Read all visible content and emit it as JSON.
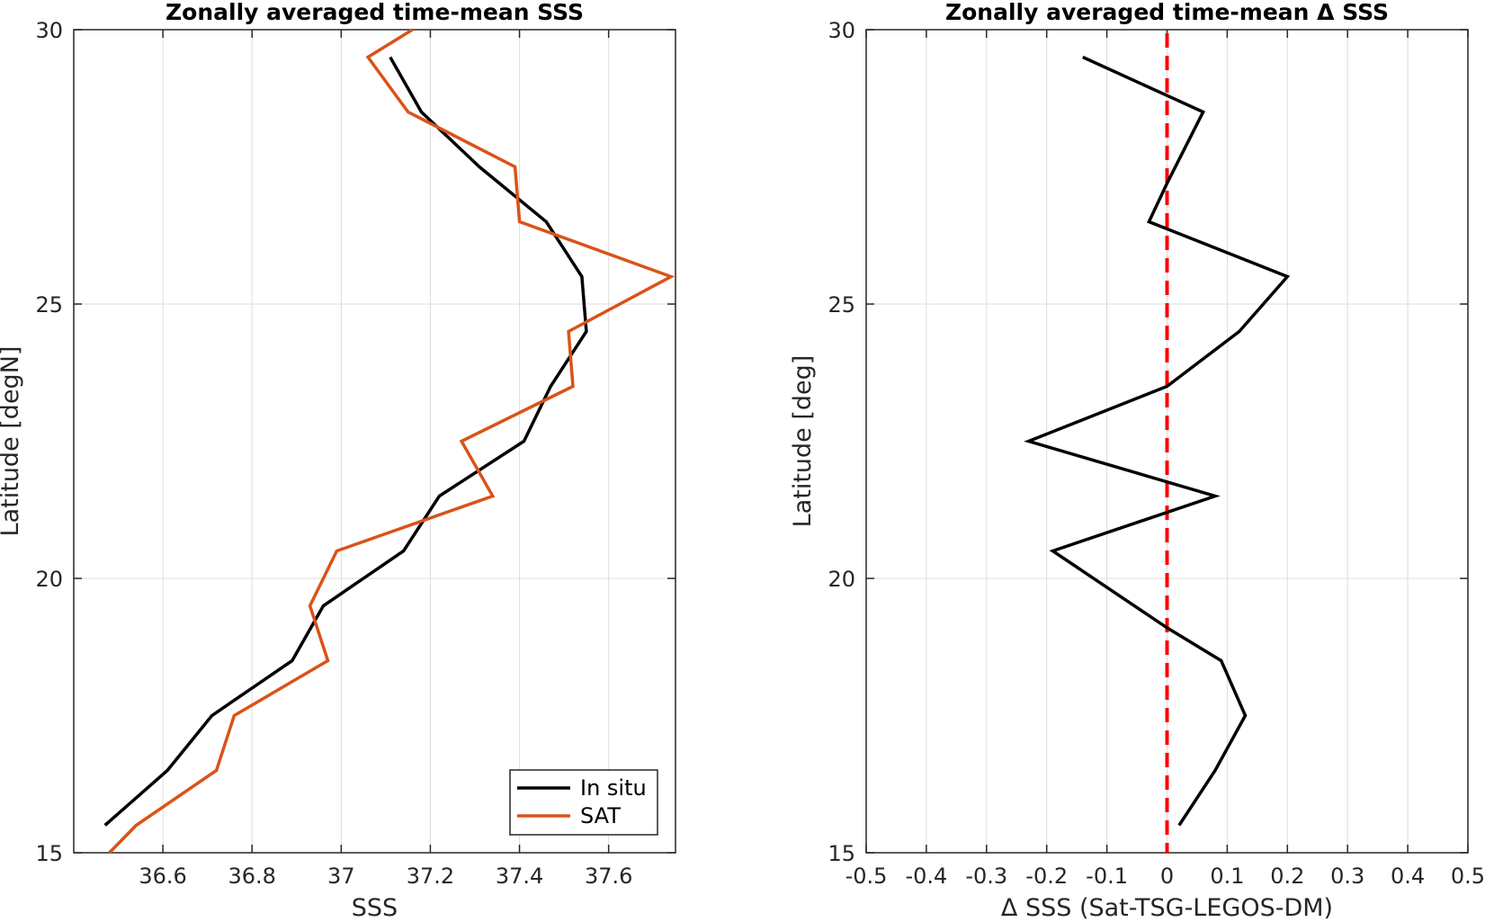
{
  "chart_data": [
    {
      "type": "line",
      "title": "Zonally averaged time-mean SSS",
      "xlabel": "SSS",
      "ylabel": "Latitude [degN]",
      "xlim": [
        36.4,
        37.75
      ],
      "ylim": [
        15,
        30
      ],
      "xticks": [
        36.6,
        36.8,
        37.0,
        37.2,
        37.4,
        37.6
      ],
      "xtick_labels": [
        "36.6",
        "36.8",
        "37",
        "37.2",
        "37.4",
        "37.6"
      ],
      "yticks": [
        15,
        20,
        25,
        30
      ],
      "ytick_labels": [
        "15",
        "20",
        "25",
        "30"
      ],
      "grid": true,
      "legend_location": "bottom-right",
      "series": [
        {
          "name": "In situ",
          "color": "#000000",
          "points": [
            [
              36.47,
              15.5
            ],
            [
              36.61,
              16.5
            ],
            [
              36.71,
              17.5
            ],
            [
              36.89,
              18.5
            ],
            [
              36.96,
              19.5
            ],
            [
              37.14,
              20.5
            ],
            [
              37.22,
              21.5
            ],
            [
              37.41,
              22.5
            ],
            [
              37.47,
              23.5
            ],
            [
              37.55,
              24.5
            ],
            [
              37.54,
              25.5
            ],
            [
              37.46,
              26.5
            ],
            [
              37.31,
              27.5
            ],
            [
              37.18,
              28.5
            ],
            [
              37.11,
              29.5
            ]
          ]
        },
        {
          "name": "SAT",
          "color": "#D95319",
          "points": [
            [
              36.48,
              15.0
            ],
            [
              36.54,
              15.5
            ],
            [
              36.72,
              16.5
            ],
            [
              36.76,
              17.5
            ],
            [
              36.97,
              18.5
            ],
            [
              36.93,
              19.5
            ],
            [
              36.99,
              20.5
            ],
            [
              37.34,
              21.5
            ],
            [
              37.27,
              22.5
            ],
            [
              37.52,
              23.5
            ],
            [
              37.51,
              24.5
            ],
            [
              37.74,
              25.5
            ],
            [
              37.4,
              26.5
            ],
            [
              37.39,
              27.5
            ],
            [
              37.15,
              28.5
            ],
            [
              37.06,
              29.5
            ],
            [
              37.16,
              30.0
            ]
          ]
        }
      ]
    },
    {
      "type": "line",
      "title": "Zonally averaged time-mean Δ SSS",
      "xlabel": "Δ SSS (Sat-TSG-LEGOS-DM)",
      "ylabel": "Latitude [deg]",
      "xlim": [
        -0.5,
        0.5
      ],
      "ylim": [
        15,
        30
      ],
      "xticks": [
        -0.5,
        -0.4,
        -0.3,
        -0.2,
        -0.1,
        0,
        0.1,
        0.2,
        0.3,
        0.4,
        0.5
      ],
      "xtick_labels": [
        "-0.5",
        "-0.4",
        "-0.3",
        "-0.2",
        "-0.1",
        "0",
        "0.1",
        "0.2",
        "0.3",
        "0.4",
        "0.5"
      ],
      "yticks": [
        15,
        20,
        25,
        30
      ],
      "ytick_labels": [
        "15",
        "20",
        "25",
        "30"
      ],
      "grid": true,
      "reference_line": {
        "x": 0,
        "color": "#FF0000",
        "style": "dashed"
      },
      "series": [
        {
          "color": "#000000",
          "points": [
            [
              0.02,
              15.5
            ],
            [
              0.08,
              16.5
            ],
            [
              0.13,
              17.5
            ],
            [
              0.09,
              18.5
            ],
            [
              0.0,
              19.1
            ],
            [
              -0.19,
              20.5
            ],
            [
              0.08,
              21.5
            ],
            [
              -0.23,
              22.5
            ],
            [
              0.0,
              23.5
            ],
            [
              0.12,
              24.5
            ],
            [
              0.2,
              25.5
            ],
            [
              -0.03,
              26.5
            ],
            [
              0.0,
              27.2
            ],
            [
              0.06,
              28.5
            ],
            [
              0.0,
              28.8
            ],
            [
              -0.14,
              29.5
            ]
          ]
        }
      ]
    }
  ]
}
